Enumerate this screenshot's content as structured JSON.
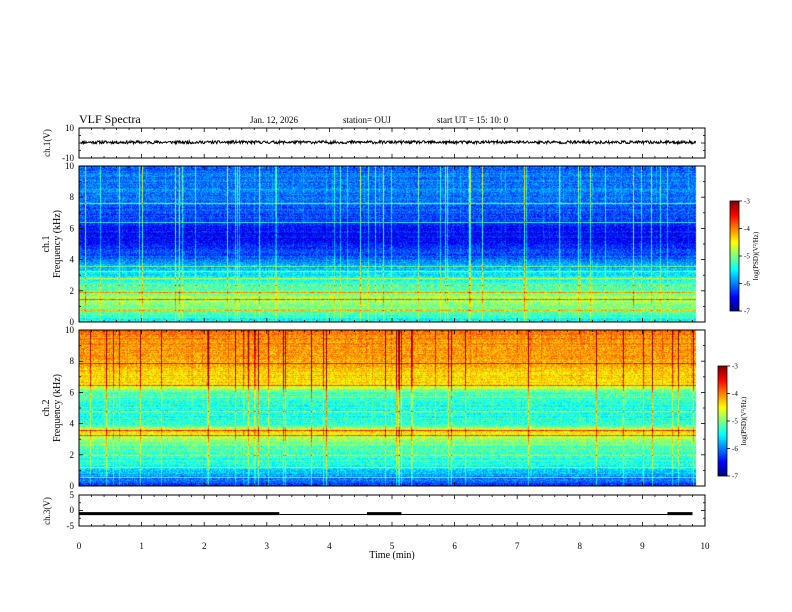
{
  "header": {
    "title": "VLF Spectra",
    "date": "Jan. 12, 2026",
    "station": "station= OUJ",
    "start": "start UT =  15: 10: 0"
  },
  "chart_data": [
    {
      "type": "line",
      "ylabel": "ch.1(V)",
      "yticks": [
        "10",
        "-10"
      ],
      "ylim": [
        -10,
        10
      ],
      "xlim": [
        0,
        10
      ],
      "level": 0.5,
      "noise": 1.0
    },
    {
      "type": "heatmap",
      "ylabel_a": "ch.1",
      "ylabel_b": "Frequency  (kHz)",
      "yticks": [
        "0",
        "2",
        "4",
        "6",
        "8",
        "10"
      ],
      "ylim": [
        0,
        10
      ],
      "xlim": [
        0,
        10
      ],
      "profile": [
        [
          0,
          0.35
        ],
        [
          0.5,
          0.45
        ],
        [
          1.5,
          0.55
        ],
        [
          2.5,
          0.42
        ],
        [
          3.5,
          0.3
        ],
        [
          4.5,
          0.18
        ],
        [
          5.5,
          0.12
        ],
        [
          7,
          0.2
        ],
        [
          8.5,
          0.25
        ],
        [
          10,
          0.22
        ]
      ],
      "lines_khz": [
        0.8,
        1.5,
        1.9,
        2.4,
        2.8,
        3.3,
        3.6,
        6.4,
        7.6
      ],
      "colorbar": {
        "label": "log(PSD)(V²/Hz)",
        "ticks": [
          "-3",
          "-4",
          "-5",
          "-6",
          "-7"
        ],
        "range": [
          -7,
          -3
        ]
      }
    },
    {
      "type": "heatmap",
      "ylabel_a": "ch.2",
      "ylabel_b": "Frequency  (kHz)",
      "yticks": [
        "0",
        "2",
        "4",
        "6",
        "8",
        "10"
      ],
      "ylim": [
        0,
        10
      ],
      "xlim": [
        0,
        10
      ],
      "profile": [
        [
          0,
          0.15
        ],
        [
          0.8,
          0.3
        ],
        [
          1.5,
          0.4
        ],
        [
          2.5,
          0.45
        ],
        [
          3.2,
          0.55
        ],
        [
          3.5,
          0.65
        ],
        [
          4,
          0.42
        ],
        [
          5,
          0.4
        ],
        [
          6,
          0.45
        ],
        [
          6.6,
          0.65
        ],
        [
          7.5,
          0.68
        ],
        [
          9,
          0.72
        ],
        [
          10,
          0.75
        ]
      ],
      "lines_khz": [
        0.6,
        1.2,
        2.0,
        3.3,
        3.6,
        4.8,
        6.5,
        7.9
      ],
      "colorbar": {
        "label": "log(PSD)(V²/Hz)",
        "ticks": [
          "-3",
          "-4",
          "-5",
          "-6",
          "-7"
        ],
        "range": [
          -7,
          -3
        ]
      }
    },
    {
      "type": "line",
      "ylabel": "ch.3(V)",
      "yticks": [
        "5",
        "0",
        "-5"
      ],
      "ylim": [
        -5,
        5
      ],
      "xlim": [
        0,
        10
      ],
      "segments": [
        {
          "x": [
            0,
            3.2
          ],
          "y": -1.0
        },
        {
          "x": [
            3.2,
            4.6
          ],
          "y": -1.3
        },
        {
          "x": [
            4.6,
            5.15
          ],
          "y": -1.0
        },
        {
          "x": [
            5.15,
            9.4
          ],
          "y": -1.3
        },
        {
          "x": [
            9.4,
            9.8
          ],
          "y": -1.0
        }
      ]
    }
  ],
  "xaxis": {
    "label": "Time  (min)",
    "ticks": [
      "0",
      "1",
      "2",
      "3",
      "4",
      "5",
      "6",
      "7",
      "8",
      "9",
      "10"
    ],
    "xlim": [
      0,
      10
    ]
  }
}
